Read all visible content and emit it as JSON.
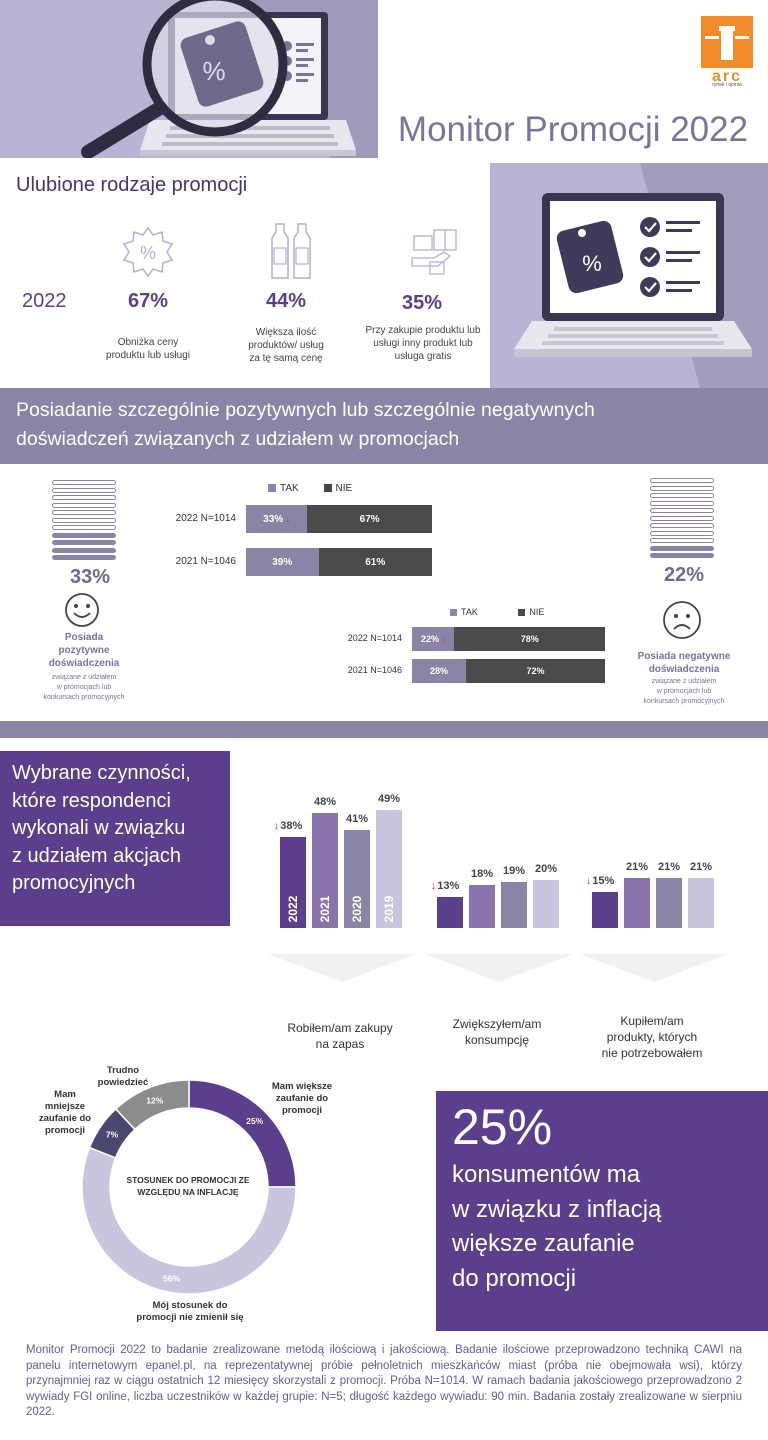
{
  "header": {
    "title": "Monitor Promocji 2022",
    "logo_text": "arc",
    "logo_sub": "rynek i opinia",
    "colors": {
      "lavender": "#b9b4d3",
      "purple": "#5b3f8c",
      "grey_purple": "#8a85a6",
      "orange": "#f28c28"
    }
  },
  "favorite": {
    "title": "Ulubione rodzaje promocji",
    "year": "2022",
    "items": [
      {
        "icon": "percent-badge-icon",
        "pct": "67%",
        "desc": [
          "Obniżka ceny",
          "produktu lub usługi"
        ]
      },
      {
        "icon": "bottles-icon",
        "pct": "44%",
        "desc": [
          "Większa ilość",
          "produktów/ usług",
          "za tę samą cenę"
        ]
      },
      {
        "icon": "gift-products-icon",
        "pct": "35%",
        "desc": [
          "Przy zakupie produktu lub",
          "usługi inny produkt lub",
          "usługa gratis"
        ]
      }
    ]
  },
  "experience": {
    "title_line1": "Posiadanie szczególnie pozytywnych lub szczególnie negatywnych",
    "title_line2": "doświadczeń związanych z udziałem w promocjach",
    "positive": {
      "pct": "33%",
      "label": [
        "Posiada",
        "pozytywne",
        "doświadczenia"
      ],
      "sub": [
        "związane z udziałem",
        "w promocjach lub",
        "konkursach promocyjnych"
      ],
      "chart": {
        "legend_yes": "TAK",
        "legend_no": "NIE",
        "rows": [
          {
            "label": "2022 N=1014",
            "yes": 33,
            "no": 67,
            "yes_text": "33%",
            "no_text": "67%",
            "down": true
          },
          {
            "label": "2021 N=1046",
            "yes": 39,
            "no": 61,
            "yes_text": "39%",
            "no_text": "61%",
            "down": false
          }
        ]
      }
    },
    "negative": {
      "pct": "22%",
      "label": [
        "Posiada negatywne",
        "doświadczenia"
      ],
      "sub": [
        "związane z udziałem",
        "w promocjach lub",
        "konkursach promocyjnych"
      ],
      "chart": {
        "legend_yes": "TAK",
        "legend_no": "NIE",
        "rows": [
          {
            "label": "2022 N=1014",
            "yes": 22,
            "no": 78,
            "yes_text": "22%",
            "no_text": "78%",
            "down": true
          },
          {
            "label": "2021 N=1046",
            "yes": 28,
            "no": 72,
            "yes_text": "28%",
            "no_text": "72%",
            "down": false
          }
        ]
      }
    }
  },
  "actions": {
    "title": [
      "Wybrane czynności,",
      "które respondenci",
      "wykonali w związku",
      "z udziałem akcjach",
      "promocyjnych"
    ],
    "years": [
      "2022",
      "2021",
      "2020",
      "2019"
    ],
    "groups": [
      {
        "label": [
          "Robiłem/am zakupy",
          "na zapas"
        ],
        "values": [
          38,
          48,
          41,
          49
        ],
        "texts": [
          "38%",
          "48%",
          "41%",
          "49%"
        ],
        "show_years": true
      },
      {
        "label": [
          "Zwiększyłem/am",
          "konsumpcję"
        ],
        "values": [
          13,
          18,
          19,
          20
        ],
        "texts": [
          "13%",
          "18%",
          "19%",
          "20%"
        ],
        "show_years": false
      },
      {
        "label": [
          "Kupiłem/am",
          "produkty, których",
          "nie potrzebowałem"
        ],
        "values": [
          15,
          21,
          21,
          21
        ],
        "texts": [
          "15%",
          "21%",
          "21%",
          "21%"
        ],
        "show_years": false
      }
    ]
  },
  "chart_data": {
    "type": "pie",
    "title": "STOSUNEK DO PROMOCJI ZE WZGLĘDU NA INFLACJĘ",
    "slices": [
      {
        "name": "Mam większe zaufanie do promocji",
        "value": 25,
        "text": "25%",
        "color": "#5b3f8c"
      },
      {
        "name": "Mój stosunek do promocji nie zmienił się",
        "value": 56,
        "text": "56%",
        "color": "#c9c5de"
      },
      {
        "name": "Mam mniejsze zaufanie do promocji",
        "value": 7,
        "text": "7%",
        "color": "#4a4870"
      },
      {
        "name": "Trudno powiedzieć",
        "value": 12,
        "text": "12%",
        "color": "#8c8c8c"
      }
    ]
  },
  "donut_labels": {
    "more_trust": [
      "Mam większe",
      "zaufanie do",
      "promocji"
    ],
    "unchanged": [
      "Mój stosunek do",
      "promocji nie zmienił się"
    ],
    "less_trust": [
      "Mam",
      "mniejsze",
      "zaufanie do",
      "promocji"
    ],
    "hard_to_say": [
      "Trudno",
      "powiedzieć"
    ],
    "center": [
      "STOSUNEK DO PROMOCJI ZE",
      "WZGLĘDU NA INFLACJĘ"
    ]
  },
  "highlight": {
    "pct": "25%",
    "lines": [
      "konsumentów ma",
      "w związku z inflacją",
      "większe zaufanie",
      "do promocji"
    ]
  },
  "footer": {
    "text": "Monitor Promocji 2022 to badanie zrealizowane metodą ilościową i jakościową. Badanie ilościowe przeprowadzono techniką CAWI na panelu internetowym epanel.pl, na reprezentatywnej próbie pełnoletnich mieszkańców miast (próba nie obejmowała wsi), którzy przynajmniej raz w ciągu ostatnich 12 miesięcy skorzystali z promocji. Próba N=1014. W ramach badania jakościowego przeprowadzono 2 wywiady FGI online, liczba uczestników w każdej grupie: N=5; długość każdego wywiadu: 90 min. Badania zostały zrealizowane w sierpniu 2022."
  }
}
